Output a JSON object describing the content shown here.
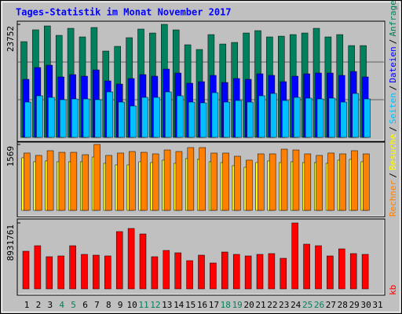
{
  "chart_data": [
    {
      "type": "bar",
      "title": "Tages-Statistik im Monat November 2017",
      "ylim": [
        0,
        23752
      ],
      "yticks": [
        23752
      ],
      "grid": true,
      "series": [
        {
          "name": "Anfragen",
          "color": "#00805c",
          "values": [
            20120,
            22600,
            23420,
            21440,
            22920,
            21110,
            23090,
            18140,
            19130,
            20950,
            22760,
            21930,
            23752,
            22590,
            19460,
            18470,
            21600,
            19620,
            19950,
            21930,
            22430,
            21110,
            21270,
            21600,
            21930,
            22920,
            21110,
            21600,
            19290,
            19290,
            null
          ]
        },
        {
          "name": "Dateien",
          "color": "#0000ff",
          "values": [
            12200,
            14680,
            15170,
            12700,
            13190,
            12860,
            14180,
            11870,
            11210,
            12370,
            13190,
            12860,
            14350,
            13520,
            11380,
            11710,
            13030,
            11540,
            12370,
            12200,
            13360,
            13030,
            11710,
            12860,
            13360,
            13520,
            13520,
            13030,
            13850,
            12700,
            null
          ]
        },
        {
          "name": "Seiten",
          "color": "#00c0ff",
          "values": [
            7420,
            8740,
            8410,
            7920,
            8080,
            8080,
            7920,
            9560,
            7420,
            6600,
            8410,
            8410,
            9560,
            8740,
            7420,
            7260,
            9400,
            7420,
            7750,
            7420,
            8740,
            9230,
            7750,
            8410,
            8250,
            8080,
            8250,
            7420,
            9230,
            8080,
            null
          ]
        }
      ]
    },
    {
      "type": "bar",
      "ylim": [
        0,
        1569
      ],
      "yticks": [
        1569
      ],
      "legend_separator": "/",
      "series": [
        {
          "name": "Besuche",
          "color": "#ffff00",
          "values": [
            1252,
            1158,
            1177,
            1158,
            1158,
            1158,
            1270,
            1121,
            1083,
            1083,
            1158,
            1139,
            1196,
            1121,
            1233,
            1214,
            1158,
            1139,
            1065,
            1027,
            1139,
            1177,
            1139,
            1158,
            1139,
            1139,
            1121,
            1196,
            1214,
            1158,
            null
          ]
        },
        {
          "name": "Rechner",
          "color": "#ff8000",
          "values": [
            1364,
            1308,
            1420,
            1382,
            1382,
            1326,
            1569,
            1308,
            1364,
            1401,
            1382,
            1345,
            1438,
            1401,
            1494,
            1494,
            1364,
            1364,
            1289,
            1196,
            1345,
            1345,
            1457,
            1438,
            1345,
            1308,
            1364,
            1345,
            1420,
            1345,
            null
          ]
        }
      ]
    },
    {
      "type": "bar",
      "ylim": [
        0,
        8931761
      ],
      "yticks": [
        8931761
      ],
      "categories": [
        "1",
        "2",
        "3",
        "4",
        "5",
        "6",
        "7",
        "8",
        "9",
        "10",
        "11",
        "12",
        "13",
        "14",
        "15",
        "16",
        "17",
        "18",
        "19",
        "20",
        "21",
        "22",
        "23",
        "24",
        "25",
        "26",
        "27",
        "28",
        "29",
        "30",
        "31"
      ],
      "category_colors": [
        "#000000",
        "#000000",
        "#000000",
        "#00805c",
        "#00805c",
        "#000000",
        "#000000",
        "#000000",
        "#000000",
        "#000000",
        "#00805c",
        "#00805c",
        "#000000",
        "#000000",
        "#000000",
        "#000000",
        "#000000",
        "#00805c",
        "#00805c",
        "#000000",
        "#000000",
        "#000000",
        "#000000",
        "#000000",
        "#00805c",
        "#00805c",
        "#000000",
        "#000000",
        "#000000",
        "#000000",
        "#000000"
      ],
      "series": [
        {
          "name": "kb",
          "color": "#ff0000",
          "values": [
            5103840,
            5848150,
            4359530,
            4465860,
            5848150,
            4678520,
            4572190,
            4465860,
            7762090,
            8187410,
            7443100,
            4359530,
            5210170,
            4891180,
            3827880,
            4572190,
            3508890,
            4997510,
            4678520,
            4465860,
            4678520,
            4784850,
            4146870,
            8931761,
            6060810,
            5848150,
            4465860,
            5422830,
            4784850,
            4678520,
            null
          ]
        }
      ]
    }
  ]
}
